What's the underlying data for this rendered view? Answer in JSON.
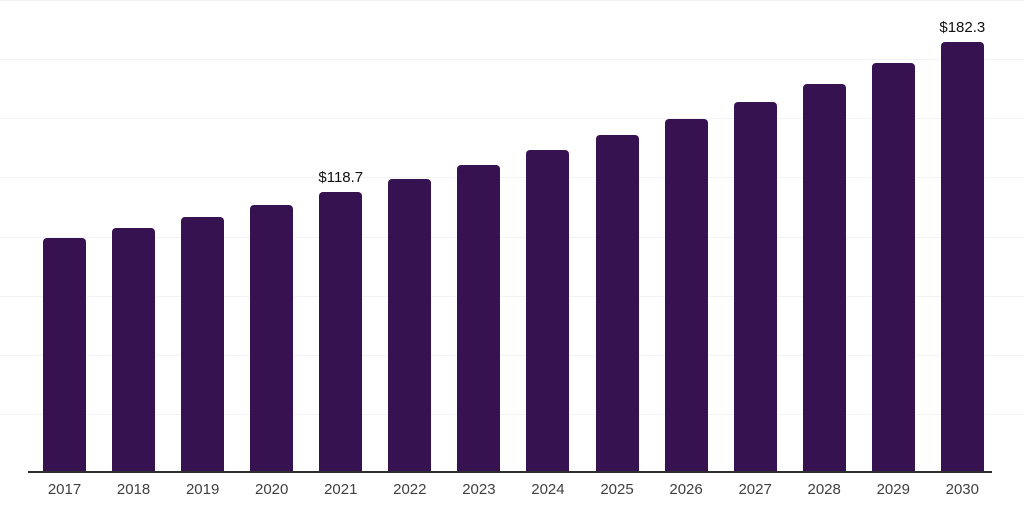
{
  "chart_data": {
    "type": "bar",
    "title": "",
    "xlabel": "",
    "ylabel": "",
    "categories": [
      "2017",
      "2018",
      "2019",
      "2020",
      "2021",
      "2022",
      "2023",
      "2024",
      "2025",
      "2026",
      "2027",
      "2028",
      "2029",
      "2030"
    ],
    "values": [
      99.4,
      103.7,
      108.4,
      113.5,
      118.7,
      124.3,
      130.3,
      136.5,
      143.1,
      149.8,
      157.0,
      164.5,
      173.2,
      182.3
    ],
    "data_labels": [
      "",
      "",
      "",
      "",
      "$118.7",
      "",
      "",
      "",
      "",
      "",
      "",
      "",
      "",
      "$182.3"
    ],
    "ylim": [
      0,
      200
    ],
    "gridline_interval": 25,
    "grid": "horizontal",
    "legend": "none",
    "colors": {
      "bar": "#361250",
      "axis_line": "#2e2e2e",
      "gridline": "#f2f2f4",
      "tick_label": "#404040",
      "data_label": "#111111",
      "background": "#ffffff"
    }
  }
}
